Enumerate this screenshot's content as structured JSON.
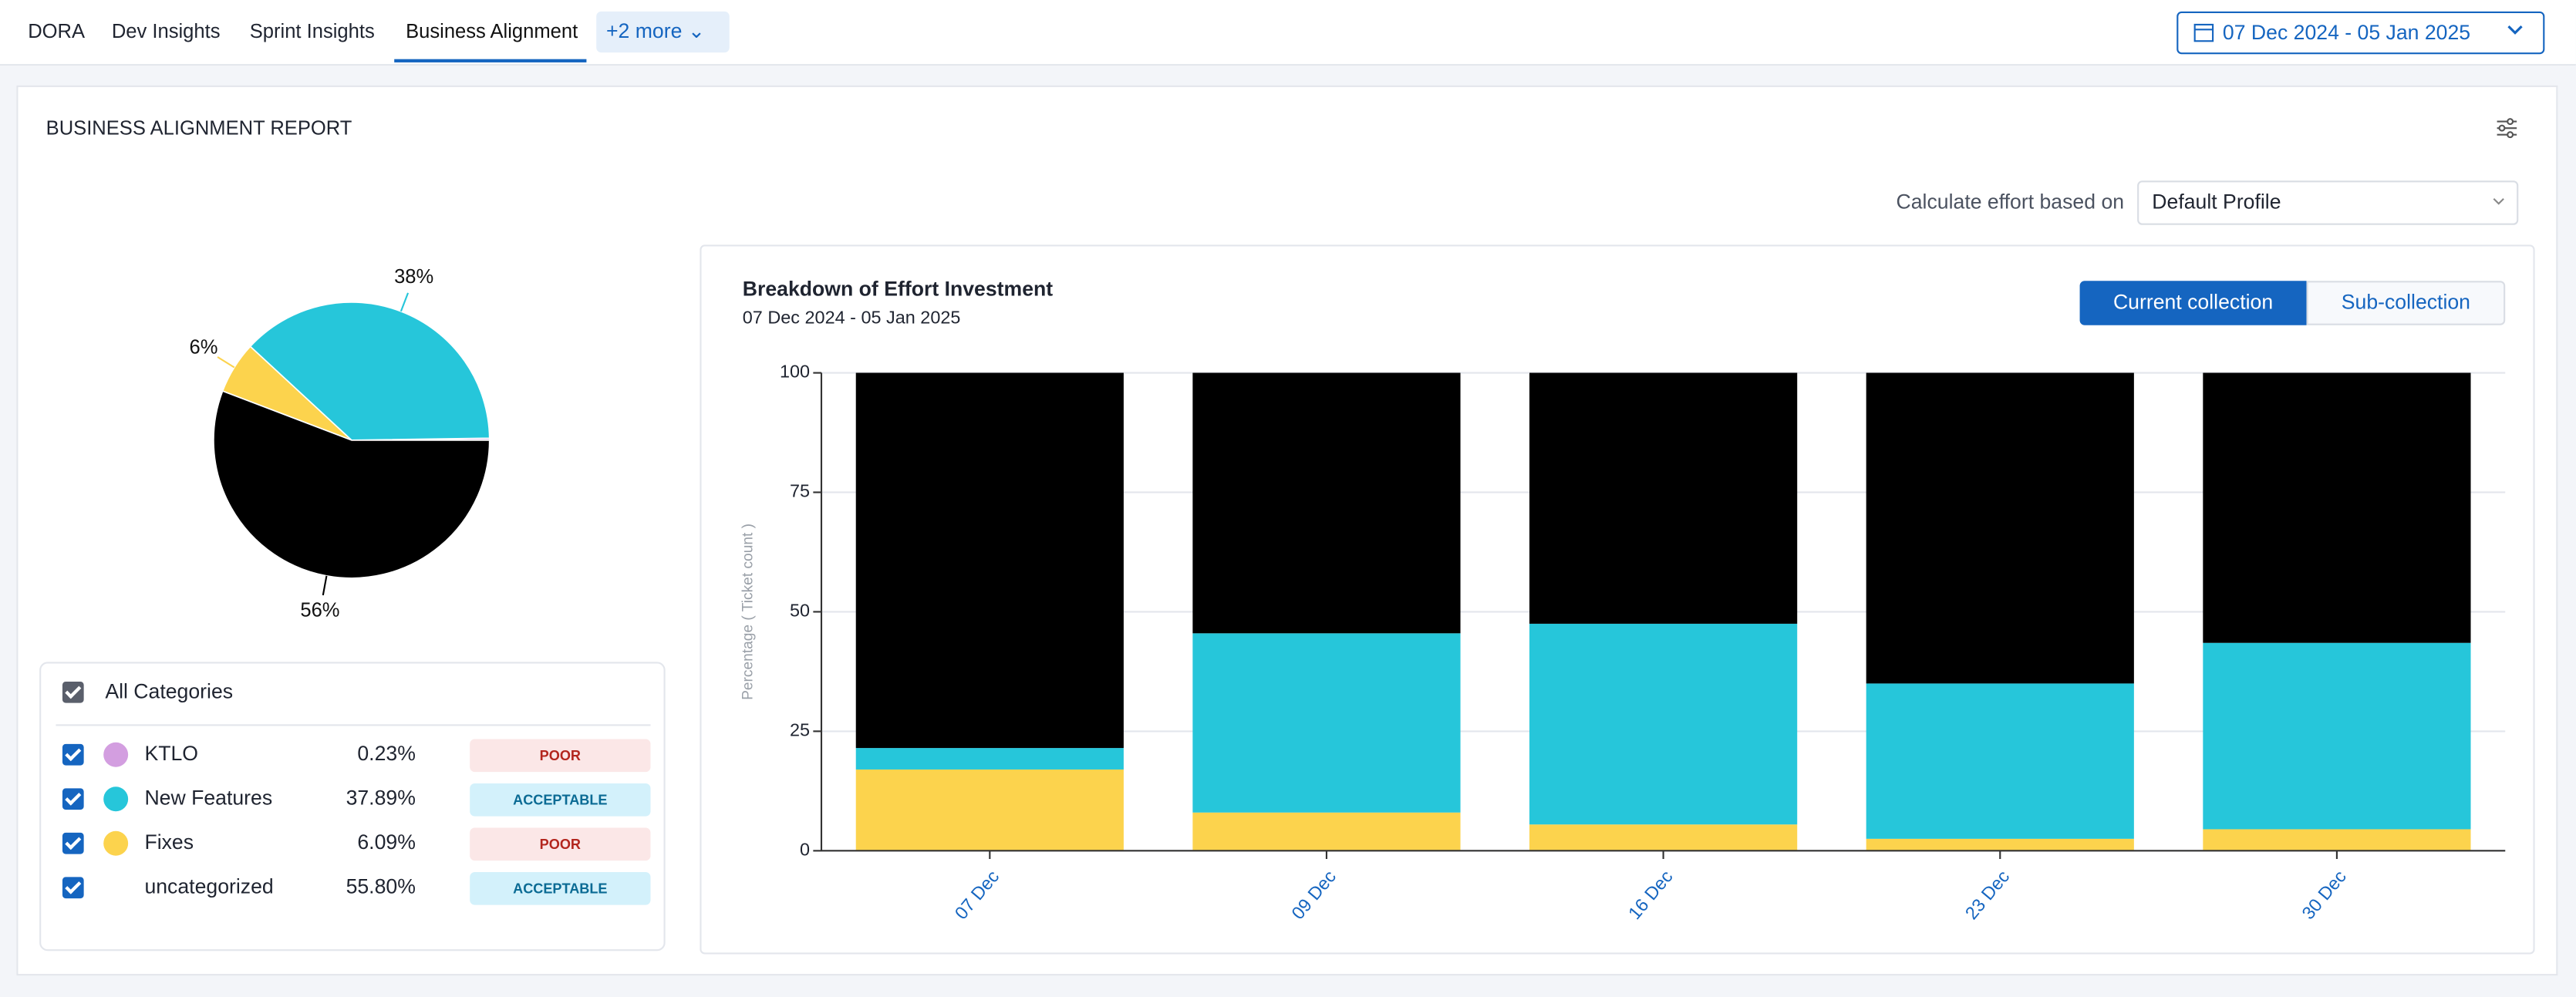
{
  "tabs": [
    "DORA",
    "Dev Insights",
    "Sprint Insights",
    "Business Alignment"
  ],
  "more_tab": "+2 more",
  "date_range": "07 Dec 2024 - 05 Jan 2025",
  "report_title": "BUSINESS ALIGNMENT REPORT",
  "effort_label": "Calculate effort based on",
  "effort_profile": "Default Profile",
  "chart_data": [
    {
      "type": "pie",
      "categories": [
        "KTLO",
        "New Features",
        "Fixes",
        "uncategorized"
      ],
      "values": [
        0.23,
        37.89,
        6.09,
        55.8
      ],
      "value_labels": [
        null,
        "38%",
        "6%",
        "56%"
      ],
      "colors": [
        "#d39ee0",
        "#26c6da",
        "#fcd34d",
        "#000000"
      ],
      "legend_dots": [
        true,
        true,
        true,
        false
      ],
      "legend_header": "All Categories",
      "legend_percents": [
        "0.23%",
        "37.89%",
        "6.09%",
        "55.80%"
      ],
      "legend_statuses": [
        "POOR",
        "ACCEPTABLE",
        "POOR",
        "ACCEPTABLE"
      ]
    },
    {
      "type": "stacked_bar",
      "title": "Breakdown of Effort Investment",
      "subtitle": "07 Dec 2024 - 05 Jan 2025",
      "buttons": [
        "Current collection",
        "Sub-collection"
      ],
      "y_label": "Percentage ( Ticket count )",
      "categories": [
        "07 Dec",
        "09 Dec",
        "16 Dec",
        "23 Dec",
        "30 Dec"
      ],
      "series": [
        {
          "color": "#fcd34d",
          "values": [
            17,
            8,
            5.5,
            2.5,
            4.5
          ]
        },
        {
          "color": "#26c6da",
          "values": [
            4.5,
            37.5,
            42,
            32.5,
            39
          ]
        },
        {
          "color": "#000000",
          "values": [
            78.5,
            54.5,
            52.5,
            65,
            56.5
          ]
        }
      ],
      "ylim": [
        0,
        100
      ],
      "yticks": [
        0,
        25,
        50,
        75,
        100
      ],
      "grid": true
    }
  ]
}
